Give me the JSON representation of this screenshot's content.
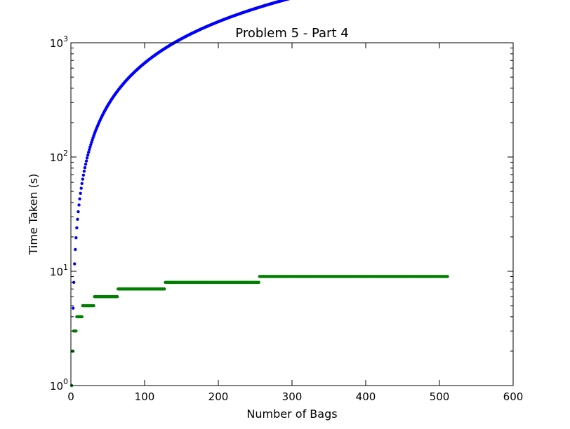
{
  "chart_data": {
    "type": "scatter",
    "title": "Problem 5 - Part 4",
    "xlabel": "Number of Bags",
    "ylabel": "Time Taken (s)",
    "xlim": [
      0,
      600
    ],
    "ylim": [
      1,
      1000
    ],
    "yscale": "log",
    "grid": false,
    "x_ticks": [
      "0",
      "100",
      "200",
      "300",
      "400",
      "500",
      "600"
    ],
    "y_ticks": [
      {
        "base": "10",
        "exp": "0"
      },
      {
        "base": "10",
        "exp": "1"
      },
      {
        "base": "10",
        "exp": "2"
      },
      {
        "base": "10",
        "exp": "3"
      }
    ],
    "series": [
      {
        "color": "#0000ff",
        "formula": "n*log2(n)",
        "x_range": [
          1,
          511
        ],
        "marker": "dot"
      },
      {
        "color": "#007f00",
        "formula": "floor(log2(n))+1",
        "x_range": [
          1,
          511
        ],
        "marker": "dot"
      }
    ]
  }
}
